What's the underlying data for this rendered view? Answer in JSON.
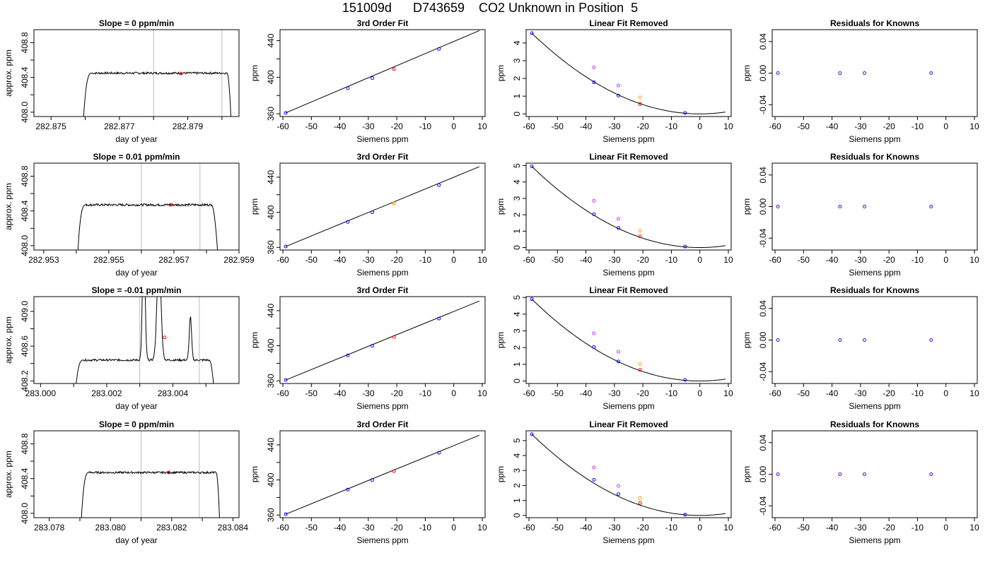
{
  "page": {
    "title": "151009d      D743659    CO2 Unknown in Position  5"
  },
  "chart_data": [
    {
      "type": "line",
      "row": 1,
      "panel": "timeseries",
      "title": "Slope =  0  ppm/min",
      "xlabel": "day of year",
      "ylabel": "approx. ppm",
      "xlim": [
        282.8745,
        282.8805
      ],
      "ylim": [
        407.95,
        408.95
      ],
      "xticks": [
        282.875,
        282.876,
        282.877,
        282.878,
        282.879,
        282.88
      ],
      "xticklabels": [
        "282.875",
        "",
        "282.877",
        "",
        "282.879",
        ""
      ],
      "yticks": [
        408.0,
        408.2,
        408.4,
        408.6,
        408.8
      ],
      "yticklabels": [
        "408.0",
        "",
        "408.4",
        "",
        "408.8"
      ],
      "vlines": [
        282.878,
        282.88
      ],
      "trace": {
        "start": 282.8759,
        "rise_end": 282.8762,
        "fall_start": 282.88015,
        "end": 282.8803,
        "plateau": 408.45,
        "noise": 0.012,
        "spikes": []
      },
      "point": {
        "x": 282.8788,
        "y": 408.445,
        "color": "#ff0000"
      }
    },
    {
      "type": "scatter",
      "row": 1,
      "panel": "fit",
      "title": "3rd Order Fit",
      "xlabel": "Siemens ppm",
      "ylabel": "ppm",
      "xlim": [
        -61,
        11
      ],
      "ylim": [
        357,
        452
      ],
      "xticks": [
        -60,
        -50,
        -40,
        -30,
        -20,
        -10,
        0,
        10
      ],
      "yticks": [
        360,
        380,
        400,
        420,
        440
      ],
      "yticklabels": [
        "360",
        "",
        "400",
        "",
        "440"
      ],
      "line": {
        "x": [
          -59,
          9
        ],
        "y": [
          361,
          451
        ]
      },
      "points": [
        {
          "x": -59,
          "y": 361,
          "color": "#0000ff"
        },
        {
          "x": -37.2,
          "y": 388,
          "color": "#0000ff"
        },
        {
          "x": -28.6,
          "y": 399,
          "color": "#0000ff"
        },
        {
          "x": -21,
          "y": 409,
          "color": "#ff0000"
        },
        {
          "x": -5.2,
          "y": 431,
          "color": "#0000ff"
        }
      ]
    },
    {
      "type": "scatter",
      "row": 1,
      "panel": "linear_removed",
      "title": "Linear Fit Removed",
      "xlabel": "Siemens ppm",
      "ylabel": "ppm",
      "xlim": [
        -61,
        11
      ],
      "ylim": [
        -0.15,
        4.75
      ],
      "xticks": [
        -60,
        -50,
        -40,
        -30,
        -20,
        -10,
        0,
        10
      ],
      "yticks": [
        0,
        1,
        2,
        3,
        4
      ],
      "curve": {
        "x0": -59,
        "y0": 4.55,
        "vertex": 0
      },
      "points": [
        {
          "x": -59,
          "y": 4.55,
          "color": "#0000ff"
        },
        {
          "x": -37.2,
          "y": 1.78,
          "color": "#0000ff"
        },
        {
          "x": -37.2,
          "y": 2.62,
          "color": "#cc33ff"
        },
        {
          "x": -28.6,
          "y": 1.03,
          "color": "#0000ff"
        },
        {
          "x": -28.6,
          "y": 1.6,
          "color": "#cc33ff"
        },
        {
          "x": -21,
          "y": 0.55,
          "color": "#ff0000"
        },
        {
          "x": -21,
          "y": 0.93,
          "color": "#ffa500"
        },
        {
          "x": -5.2,
          "y": 0.05,
          "color": "#0000ff"
        }
      ]
    },
    {
      "type": "scatter",
      "row": 1,
      "panel": "residuals",
      "title": "Residuals for Knowns",
      "xlabel": "Siemens ppm",
      "ylabel": "ppm",
      "xlim": [
        -61,
        11
      ],
      "ylim": [
        -0.055,
        0.055
      ],
      "xticks": [
        -60,
        -50,
        -40,
        -30,
        -20,
        -10,
        0,
        10
      ],
      "yticks": [
        -0.04,
        0.0,
        0.04
      ],
      "yticklabels": [
        "-0.04",
        "0.00",
        "0.04"
      ],
      "points": [
        {
          "x": -59,
          "y": 0,
          "color": "#5500cc"
        },
        {
          "x": -37.2,
          "y": 0,
          "color": "#5500cc"
        },
        {
          "x": -28.6,
          "y": 0,
          "color": "#5500cc"
        },
        {
          "x": -5.2,
          "y": 0,
          "color": "#5500cc"
        }
      ]
    },
    {
      "type": "line",
      "row": 2,
      "panel": "timeseries",
      "title": "Slope =  0.01  ppm/min",
      "xlabel": "day of year",
      "ylabel": "approx. ppm",
      "xlim": [
        282.9527,
        282.959
      ],
      "ylim": [
        407.95,
        408.95
      ],
      "xticks": [
        282.953,
        282.954,
        282.955,
        282.956,
        282.957,
        282.958,
        282.959
      ],
      "xticklabels": [
        "282.953",
        "",
        "282.955",
        "",
        "282.957",
        "",
        "282.959"
      ],
      "yticks": [
        408.0,
        408.2,
        408.4,
        408.6,
        408.8
      ],
      "yticklabels": [
        "408.0",
        "",
        "408.4",
        "",
        "408.8"
      ],
      "vlines": [
        282.956,
        282.9578
      ],
      "trace": {
        "start": 282.954,
        "rise_end": 282.9543,
        "fall_start": 282.95815,
        "end": 282.9584,
        "plateau": 408.47,
        "noise": 0.013,
        "spikes": []
      },
      "point": {
        "x": 282.9569,
        "y": 408.47,
        "color": "#ff0000"
      }
    },
    {
      "type": "scatter",
      "row": 2,
      "panel": "fit",
      "title": "3rd Order Fit",
      "xlabel": "Siemens ppm",
      "ylabel": "ppm",
      "xlim": [
        -61,
        11
      ],
      "ylim": [
        357,
        456
      ],
      "xticks": [
        -60,
        -50,
        -40,
        -30,
        -20,
        -10,
        0,
        10
      ],
      "yticks": [
        360,
        380,
        400,
        420,
        440
      ],
      "yticklabels": [
        "360",
        "",
        "400",
        "",
        "440"
      ],
      "line": {
        "x": [
          -59,
          9
        ],
        "y": [
          361,
          452
        ]
      },
      "points": [
        {
          "x": -59,
          "y": 361,
          "color": "#0000ff"
        },
        {
          "x": -37.2,
          "y": 389,
          "color": "#0000ff"
        },
        {
          "x": -28.6,
          "y": 400,
          "color": "#0000ff"
        },
        {
          "x": -21,
          "y": 410,
          "color": "#ff0000"
        },
        {
          "x": -21,
          "y": 410,
          "color": "#ffa500"
        },
        {
          "x": -5.2,
          "y": 431,
          "color": "#0000ff"
        }
      ]
    },
    {
      "type": "scatter",
      "row": 2,
      "panel": "linear_removed",
      "title": "Linear Fit Removed",
      "xlabel": "Siemens ppm",
      "ylabel": "ppm",
      "xlim": [
        -61,
        11
      ],
      "ylim": [
        -0.15,
        5.15
      ],
      "xticks": [
        -60,
        -50,
        -40,
        -30,
        -20,
        -10,
        0,
        10
      ],
      "yticks": [
        0,
        1,
        2,
        3,
        4,
        5
      ],
      "curve": {
        "x0": -59,
        "y0": 4.95,
        "vertex": 0
      },
      "points": [
        {
          "x": -59,
          "y": 4.95,
          "color": "#0000ff"
        },
        {
          "x": -37.2,
          "y": 2.03,
          "color": "#0000ff"
        },
        {
          "x": -37.2,
          "y": 2.85,
          "color": "#cc33ff"
        },
        {
          "x": -28.6,
          "y": 1.2,
          "color": "#0000ff"
        },
        {
          "x": -28.6,
          "y": 1.75,
          "color": "#cc33ff"
        },
        {
          "x": -21,
          "y": 0.68,
          "color": "#ff0000"
        },
        {
          "x": -21,
          "y": 1.03,
          "color": "#ffa500"
        },
        {
          "x": -5.2,
          "y": 0.06,
          "color": "#0000ff"
        }
      ]
    },
    {
      "type": "scatter",
      "row": 2,
      "panel": "residuals",
      "title": "Residuals for Knowns",
      "xlabel": "Siemens ppm",
      "ylabel": "ppm",
      "xlim": [
        -61,
        11
      ],
      "ylim": [
        -0.055,
        0.055
      ],
      "xticks": [
        -60,
        -50,
        -40,
        -30,
        -20,
        -10,
        0,
        10
      ],
      "yticks": [
        -0.04,
        0.0,
        0.04
      ],
      "yticklabels": [
        "-0.04",
        "0.00",
        "0.04"
      ],
      "points": [
        {
          "x": -59,
          "y": 0,
          "color": "#5500cc"
        },
        {
          "x": -37.2,
          "y": 0,
          "color": "#5500cc"
        },
        {
          "x": -28.6,
          "y": 0,
          "color": "#5500cc"
        },
        {
          "x": -5.2,
          "y": 0,
          "color": "#5500cc"
        }
      ]
    },
    {
      "type": "line",
      "row": 3,
      "panel": "timeseries",
      "title": "Slope =  -0.01  ppm/min",
      "xlabel": "day of year",
      "ylabel": "approx. ppm",
      "xlim": [
        282.9998,
        283.006
      ],
      "ylim": [
        408.17,
        409.17
      ],
      "xticks": [
        283.0,
        283.001,
        283.002,
        283.003,
        283.004,
        283.005
      ],
      "xticklabels": [
        "283.000",
        "",
        "283.002",
        "",
        "283.004",
        ""
      ],
      "yticks": [
        408.2,
        408.4,
        408.6,
        408.8,
        409.0
      ],
      "yticklabels": [
        "408.2",
        "",
        "408.6",
        "",
        "409.0"
      ],
      "vlines": [
        283.003,
        283.0048
      ],
      "trace": {
        "start": 283.001,
        "rise_end": 283.0013,
        "fall_start": 283.0051,
        "end": 283.0053,
        "plateau": 408.44,
        "noise": 0.012,
        "spikes": [
          {
            "x": 283.00312,
            "h": 1.4,
            "w": 8e-05
          },
          {
            "x": 283.00358,
            "h": 1.2,
            "w": 0.00012
          },
          {
            "x": 283.00453,
            "h": 0.5,
            "w": 7e-05
          }
        ]
      },
      "point": {
        "x": 283.00375,
        "y": 408.7,
        "color": "#ff0000"
      }
    },
    {
      "type": "scatter",
      "row": 3,
      "panel": "fit",
      "title": "3rd Order Fit",
      "xlabel": "Siemens ppm",
      "ylabel": "ppm",
      "xlim": [
        -61,
        11
      ],
      "ylim": [
        357,
        456
      ],
      "xticks": [
        -60,
        -50,
        -40,
        -30,
        -20,
        -10,
        0,
        10
      ],
      "yticks": [
        360,
        380,
        400,
        420,
        440
      ],
      "yticklabels": [
        "360",
        "",
        "400",
        "",
        "440"
      ],
      "line": {
        "x": [
          -59,
          9
        ],
        "y": [
          361,
          451
        ]
      },
      "points": [
        {
          "x": -59,
          "y": 361,
          "color": "#0000ff"
        },
        {
          "x": -37.2,
          "y": 389,
          "color": "#0000ff"
        },
        {
          "x": -28.6,
          "y": 400,
          "color": "#0000ff"
        },
        {
          "x": -21,
          "y": 410,
          "color": "#ff0000"
        },
        {
          "x": -5.2,
          "y": 431,
          "color": "#0000ff"
        }
      ]
    },
    {
      "type": "scatter",
      "row": 3,
      "panel": "linear_removed",
      "title": "Linear Fit Removed",
      "xlabel": "Siemens ppm",
      "ylabel": "ppm",
      "xlim": [
        -61,
        11
      ],
      "ylim": [
        -0.15,
        5.05
      ],
      "xticks": [
        -60,
        -50,
        -40,
        -30,
        -20,
        -10,
        0,
        10
      ],
      "yticks": [
        0,
        1,
        2,
        3,
        4,
        5
      ],
      "curve": {
        "x0": -59,
        "y0": 4.9,
        "vertex": 0
      },
      "points": [
        {
          "x": -59,
          "y": 4.9,
          "color": "#0000ff"
        },
        {
          "x": -37.2,
          "y": 2.03,
          "color": "#0000ff"
        },
        {
          "x": -37.2,
          "y": 2.85,
          "color": "#cc33ff"
        },
        {
          "x": -28.6,
          "y": 1.17,
          "color": "#0000ff"
        },
        {
          "x": -28.6,
          "y": 1.75,
          "color": "#cc33ff"
        },
        {
          "x": -21,
          "y": 0.67,
          "color": "#ff0000"
        },
        {
          "x": -21,
          "y": 1.02,
          "color": "#ffa500"
        },
        {
          "x": -5.2,
          "y": 0.06,
          "color": "#0000ff"
        }
      ]
    },
    {
      "type": "scatter",
      "row": 3,
      "panel": "residuals",
      "title": "Residuals for Knowns",
      "xlabel": "Siemens ppm",
      "ylabel": "ppm",
      "xlim": [
        -61,
        11
      ],
      "ylim": [
        -0.055,
        0.055
      ],
      "xticks": [
        -60,
        -50,
        -40,
        -30,
        -20,
        -10,
        0,
        10
      ],
      "yticks": [
        -0.04,
        0.0,
        0.04
      ],
      "yticklabels": [
        "-0.04",
        "0.00",
        "0.04"
      ],
      "points": [
        {
          "x": -59,
          "y": 0,
          "color": "#5500cc"
        },
        {
          "x": -37.2,
          "y": 0,
          "color": "#5500cc"
        },
        {
          "x": -28.6,
          "y": 0,
          "color": "#5500cc"
        },
        {
          "x": -5.2,
          "y": 0,
          "color": "#5500cc"
        }
      ]
    },
    {
      "type": "line",
      "row": 4,
      "panel": "timeseries",
      "title": "Slope =  0  ppm/min",
      "xlabel": "day of year",
      "ylabel": "approx. ppm",
      "xlim": [
        283.0775,
        283.0842
      ],
      "ylim": [
        407.95,
        408.95
      ],
      "xticks": [
        283.078,
        283.079,
        283.08,
        283.081,
        283.082,
        283.083,
        283.084
      ],
      "xticklabels": [
        "283.078",
        "",
        "283.080",
        "",
        "283.082",
        "",
        "283.084"
      ],
      "yticks": [
        408.0,
        408.2,
        408.4,
        408.6,
        408.8
      ],
      "yticklabels": [
        "408.0",
        "",
        "408.4",
        "",
        "408.8"
      ],
      "vlines": [
        283.081,
        283.0829
      ],
      "trace": {
        "start": 283.079,
        "rise_end": 283.0793,
        "fall_start": 283.08345,
        "end": 283.0836,
        "plateau": 408.47,
        "noise": 0.011,
        "spikes": []
      },
      "point": {
        "x": 283.0819,
        "y": 408.47,
        "color": "#ff0000"
      }
    },
    {
      "type": "scatter",
      "row": 4,
      "panel": "fit",
      "title": "3rd Order Fit",
      "xlabel": "Siemens ppm",
      "ylabel": "ppm",
      "xlim": [
        -61,
        11
      ],
      "ylim": [
        357,
        456
      ],
      "xticks": [
        -60,
        -50,
        -40,
        -30,
        -20,
        -10,
        0,
        10
      ],
      "yticks": [
        360,
        380,
        400,
        420,
        440
      ],
      "yticklabels": [
        "360",
        "",
        "400",
        "",
        "440"
      ],
      "line": {
        "x": [
          -59,
          9
        ],
        "y": [
          361,
          451
        ]
      },
      "points": [
        {
          "x": -59,
          "y": 361,
          "color": "#0000ff"
        },
        {
          "x": -37.2,
          "y": 389,
          "color": "#0000ff"
        },
        {
          "x": -28.6,
          "y": 400,
          "color": "#0000ff"
        },
        {
          "x": -21,
          "y": 410,
          "color": "#ff0000"
        },
        {
          "x": -5.2,
          "y": 431,
          "color": "#0000ff"
        }
      ]
    },
    {
      "type": "scatter",
      "row": 4,
      "panel": "linear_removed",
      "title": "Linear Fit Removed",
      "xlabel": "Siemens ppm",
      "ylabel": "ppm",
      "xlim": [
        -61,
        11
      ],
      "ylim": [
        -0.15,
        5.65
      ],
      "xticks": [
        -60,
        -50,
        -40,
        -30,
        -20,
        -10,
        0,
        10
      ],
      "yticks": [
        0,
        1,
        2,
        3,
        4,
        5
      ],
      "curve": {
        "x0": -59,
        "y0": 5.42,
        "vertex": 0
      },
      "points": [
        {
          "x": -59,
          "y": 5.42,
          "color": "#0000ff"
        },
        {
          "x": -37.2,
          "y": 2.38,
          "color": "#0000ff"
        },
        {
          "x": -37.2,
          "y": 3.2,
          "color": "#cc33ff"
        },
        {
          "x": -28.6,
          "y": 1.42,
          "color": "#0000ff"
        },
        {
          "x": -28.6,
          "y": 1.97,
          "color": "#cc33ff"
        },
        {
          "x": -21,
          "y": 0.83,
          "color": "#ff0000"
        },
        {
          "x": -21,
          "y": 1.17,
          "color": "#ffa500"
        },
        {
          "x": -5.2,
          "y": 0.05,
          "color": "#0000ff"
        }
      ]
    },
    {
      "type": "scatter",
      "row": 4,
      "panel": "residuals",
      "title": "Residuals for Knowns",
      "xlabel": "Siemens ppm",
      "ylabel": "ppm",
      "xlim": [
        -61,
        11
      ],
      "ylim": [
        -0.055,
        0.055
      ],
      "xticks": [
        -60,
        -50,
        -40,
        -30,
        -20,
        -10,
        0,
        10
      ],
      "yticks": [
        -0.04,
        0.0,
        0.04
      ],
      "yticklabels": [
        "-0.04",
        "0.00",
        "0.04"
      ],
      "points": [
        {
          "x": -59,
          "y": 0,
          "color": "#5500cc"
        },
        {
          "x": -37.2,
          "y": 0,
          "color": "#5500cc"
        },
        {
          "x": -28.6,
          "y": 0,
          "color": "#5500cc"
        },
        {
          "x": -5.2,
          "y": 0,
          "color": "#5500cc"
        }
      ]
    }
  ]
}
